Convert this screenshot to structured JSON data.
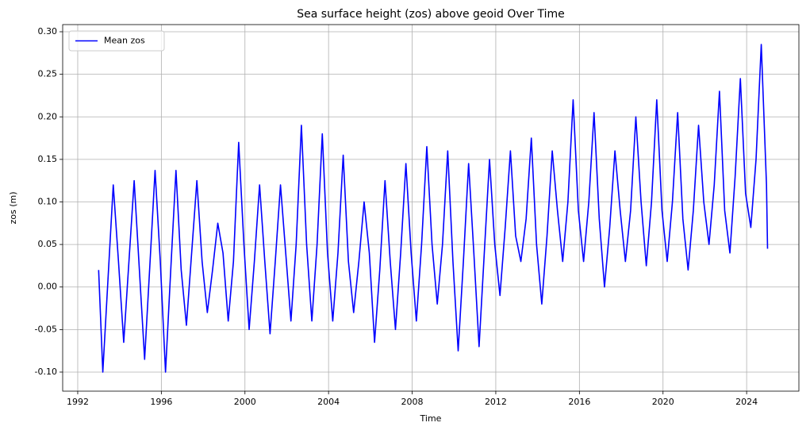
{
  "chart_data": {
    "type": "line",
    "title": "Sea surface height (zos) above geoid Over Time",
    "xlabel": "Time",
    "ylabel": "zos (m)",
    "x": [
      1993.0,
      1993.2,
      1993.45,
      1993.7,
      1993.95,
      1994.2,
      1994.45,
      1994.7,
      1994.95,
      1995.2,
      1995.45,
      1995.7,
      1995.95,
      1996.2,
      1996.45,
      1996.7,
      1996.95,
      1997.2,
      1997.45,
      1997.7,
      1997.95,
      1998.2,
      1998.45,
      1998.7,
      1998.95,
      1999.2,
      1999.45,
      1999.7,
      1999.95,
      2000.2,
      2000.45,
      2000.7,
      2000.95,
      2001.2,
      2001.45,
      2001.7,
      2001.95,
      2002.2,
      2002.45,
      2002.7,
      2002.95,
      2003.2,
      2003.45,
      2003.7,
      2003.95,
      2004.2,
      2004.45,
      2004.7,
      2004.95,
      2005.2,
      2005.45,
      2005.7,
      2005.95,
      2006.2,
      2006.45,
      2006.7,
      2006.95,
      2007.2,
      2007.45,
      2007.7,
      2007.95,
      2008.2,
      2008.45,
      2008.7,
      2008.95,
      2009.2,
      2009.45,
      2009.7,
      2009.95,
      2010.2,
      2010.45,
      2010.7,
      2010.95,
      2011.2,
      2011.45,
      2011.7,
      2011.95,
      2012.2,
      2012.45,
      2012.7,
      2012.95,
      2013.2,
      2013.45,
      2013.7,
      2013.95,
      2014.2,
      2014.45,
      2014.7,
      2014.95,
      2015.2,
      2015.45,
      2015.7,
      2015.95,
      2016.2,
      2016.45,
      2016.7,
      2016.95,
      2017.2,
      2017.45,
      2017.7,
      2017.95,
      2018.2,
      2018.45,
      2018.7,
      2018.95,
      2019.2,
      2019.45,
      2019.7,
      2019.95,
      2020.2,
      2020.45,
      2020.7,
      2020.95,
      2021.2,
      2021.45,
      2021.7,
      2021.95,
      2022.2,
      2022.45,
      2022.7,
      2022.95,
      2023.2,
      2023.45,
      2023.7,
      2023.95,
      2024.2,
      2024.45,
      2024.7,
      2024.95,
      2025.0
    ],
    "series": [
      {
        "name": "Mean zos",
        "color": "#0000ff",
        "values": [
          0.02,
          -0.1,
          0.01,
          0.12,
          0.03,
          -0.065,
          0.03,
          0.125,
          0.02,
          -0.085,
          0.025,
          0.137,
          0.03,
          -0.1,
          0.02,
          0.137,
          0.02,
          -0.045,
          0.04,
          0.125,
          0.03,
          -0.03,
          0.02,
          0.075,
          0.04,
          -0.04,
          0.03,
          0.17,
          0.05,
          -0.05,
          0.03,
          0.12,
          0.03,
          -0.055,
          0.03,
          0.12,
          0.04,
          -0.04,
          0.05,
          0.19,
          0.05,
          -0.04,
          0.05,
          0.18,
          0.04,
          -0.04,
          0.04,
          0.155,
          0.03,
          -0.03,
          0.03,
          0.1,
          0.04,
          -0.065,
          0.02,
          0.125,
          0.03,
          -0.05,
          0.04,
          0.145,
          0.04,
          -0.04,
          0.05,
          0.165,
          0.05,
          -0.02,
          0.05,
          0.16,
          0.03,
          -0.075,
          0.03,
          0.145,
          0.04,
          -0.07,
          0.04,
          0.15,
          0.05,
          -0.01,
          0.07,
          0.16,
          0.06,
          0.03,
          0.08,
          0.175,
          0.05,
          -0.02,
          0.06,
          0.16,
          0.09,
          0.03,
          0.1,
          0.22,
          0.09,
          0.03,
          0.1,
          0.205,
          0.08,
          0.0,
          0.07,
          0.16,
          0.09,
          0.03,
          0.09,
          0.2,
          0.1,
          0.025,
          0.1,
          0.22,
          0.09,
          0.03,
          0.1,
          0.205,
          0.08,
          0.02,
          0.09,
          0.19,
          0.1,
          0.05,
          0.12,
          0.23,
          0.09,
          0.04,
          0.13,
          0.245,
          0.11,
          0.07,
          0.15,
          0.285,
          0.12,
          0.045
        ]
      }
    ],
    "xlim": [
      1991.28,
      2026.5
    ],
    "xticks": [
      1992,
      1996,
      2000,
      2004,
      2008,
      2012,
      2016,
      2020,
      2024
    ],
    "ylim": [
      -0.1224,
      0.3084
    ],
    "yticks": [
      {
        "value": -0.1,
        "label": "-0.10"
      },
      {
        "value": -0.05,
        "label": "-0.05"
      },
      {
        "value": 0,
        "label": "0.00"
      },
      {
        "value": 0.05,
        "label": "0.05"
      },
      {
        "value": 0.1,
        "label": "0.10"
      },
      {
        "value": 0.15,
        "label": "0.15"
      },
      {
        "value": 0.2,
        "label": "0.20"
      },
      {
        "value": 0.25,
        "label": "0.25"
      },
      {
        "value": 0.3,
        "label": "0.30"
      }
    ],
    "grid": true,
    "legend": "upper left"
  }
}
